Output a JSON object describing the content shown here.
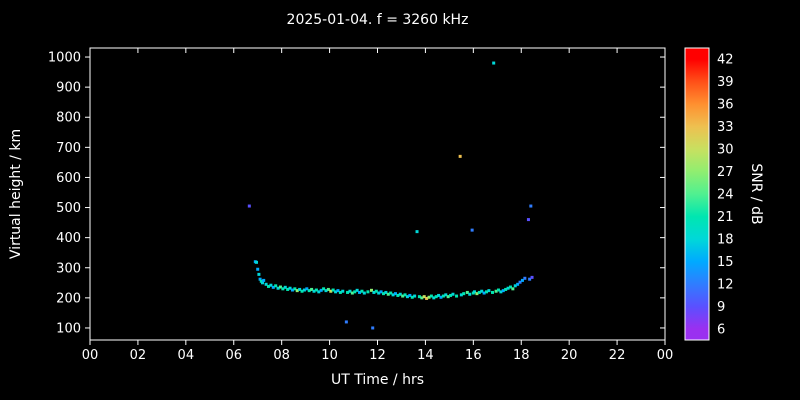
{
  "title": "2025-01-04. f = 3260 kHz",
  "background": "#000000",
  "chart_data": {
    "type": "scatter",
    "title": "2025-01-04. f = 3260 kHz",
    "xlabel": "UT Time / hrs",
    "ylabel": "Virtual height / km",
    "colorbar_label": "SNR / dB",
    "xlim": [
      0,
      24
    ],
    "ylim": [
      60,
      1030
    ],
    "grid": false,
    "legend": "colorbar-right",
    "xticks": [
      "00",
      "02",
      "04",
      "06",
      "08",
      "10",
      "12",
      "14",
      "16",
      "18",
      "20",
      "22",
      "00"
    ],
    "yticks": [
      100,
      200,
      300,
      400,
      500,
      600,
      700,
      800,
      900,
      1000
    ],
    "colorbar_ticks": [
      6,
      9,
      12,
      15,
      18,
      21,
      24,
      27,
      30,
      33,
      36,
      39,
      42
    ],
    "colorbar_range": [
      4.5,
      43.5
    ],
    "color_scale": [
      {
        "value": 6,
        "color": "#9a30f0"
      },
      {
        "value": 9,
        "color": "#5a50ff"
      },
      {
        "value": 12,
        "color": "#2f7dff"
      },
      {
        "value": 15,
        "color": "#00aaff"
      },
      {
        "value": 18,
        "color": "#00d8d8"
      },
      {
        "value": 21,
        "color": "#00e6b0"
      },
      {
        "value": 24,
        "color": "#50f090"
      },
      {
        "value": 27,
        "color": "#90ee70"
      },
      {
        "value": 30,
        "color": "#c8e060"
      },
      {
        "value": 33,
        "color": "#eec050"
      },
      {
        "value": 36,
        "color": "#ff9030"
      },
      {
        "value": 39,
        "color": "#ff5018"
      },
      {
        "value": 42,
        "color": "#ff0000"
      }
    ],
    "points": [
      [
        6.65,
        505,
        9
      ],
      [
        6.9,
        320,
        15
      ],
      [
        6.95,
        318,
        18
      ],
      [
        7.0,
        295,
        15
      ],
      [
        7.05,
        278,
        18
      ],
      [
        7.1,
        262,
        15
      ],
      [
        7.15,
        255,
        21
      ],
      [
        7.2,
        250,
        18
      ],
      [
        7.25,
        258,
        15
      ],
      [
        7.35,
        245,
        18
      ],
      [
        7.45,
        238,
        21
      ],
      [
        7.55,
        242,
        18
      ],
      [
        7.65,
        235,
        15
      ],
      [
        7.75,
        240,
        21
      ],
      [
        7.85,
        232,
        18
      ],
      [
        7.95,
        236,
        24
      ],
      [
        8.05,
        230,
        21
      ],
      [
        8.15,
        235,
        18
      ],
      [
        8.25,
        228,
        21
      ],
      [
        8.35,
        232,
        18
      ],
      [
        8.45,
        226,
        15
      ],
      [
        8.55,
        230,
        21
      ],
      [
        8.65,
        224,
        27
      ],
      [
        8.75,
        228,
        18
      ],
      [
        8.85,
        222,
        21
      ],
      [
        8.95,
        226,
        18
      ],
      [
        9.05,
        230,
        15
      ],
      [
        9.15,
        224,
        21
      ],
      [
        9.25,
        228,
        24
      ],
      [
        9.35,
        222,
        18
      ],
      [
        9.45,
        226,
        21
      ],
      [
        9.55,
        220,
        18
      ],
      [
        9.65,
        225,
        15
      ],
      [
        9.75,
        230,
        21
      ],
      [
        9.85,
        224,
        18
      ],
      [
        9.95,
        228,
        24
      ],
      [
        10.05,
        222,
        30
      ],
      [
        10.15,
        226,
        21
      ],
      [
        10.25,
        220,
        18
      ],
      [
        10.35,
        224,
        15
      ],
      [
        10.45,
        218,
        21
      ],
      [
        10.55,
        222,
        18
      ],
      [
        10.7,
        120,
        12
      ],
      [
        10.75,
        218,
        21
      ],
      [
        10.85,
        222,
        18
      ],
      [
        10.95,
        216,
        24
      ],
      [
        11.05,
        220,
        21
      ],
      [
        11.15,
        225,
        18
      ],
      [
        11.25,
        218,
        15
      ],
      [
        11.35,
        222,
        21
      ],
      [
        11.45,
        216,
        18
      ],
      [
        11.6,
        220,
        21
      ],
      [
        11.75,
        225,
        27
      ],
      [
        11.8,
        100,
        12
      ],
      [
        11.85,
        218,
        18
      ],
      [
        11.95,
        222,
        21
      ],
      [
        12.05,
        216,
        18
      ],
      [
        12.15,
        220,
        15
      ],
      [
        12.25,
        214,
        21
      ],
      [
        12.35,
        218,
        18
      ],
      [
        12.45,
        212,
        24
      ],
      [
        12.55,
        216,
        21
      ],
      [
        12.65,
        210,
        18
      ],
      [
        12.75,
        214,
        15
      ],
      [
        12.85,
        208,
        21
      ],
      [
        12.95,
        212,
        18
      ],
      [
        13.05,
        206,
        24
      ],
      [
        13.15,
        210,
        21
      ],
      [
        13.25,
        204,
        18
      ],
      [
        13.35,
        208,
        15
      ],
      [
        13.45,
        202,
        21
      ],
      [
        13.55,
        206,
        18
      ],
      [
        13.65,
        420,
        18
      ],
      [
        13.75,
        204,
        21
      ],
      [
        13.85,
        200,
        24
      ],
      [
        13.95,
        204,
        30
      ],
      [
        14.05,
        198,
        33
      ],
      [
        14.15,
        202,
        27
      ],
      [
        14.25,
        206,
        21
      ],
      [
        14.35,
        200,
        18
      ],
      [
        14.45,
        204,
        21
      ],
      [
        14.55,
        208,
        18
      ],
      [
        14.65,
        202,
        15
      ],
      [
        14.75,
        206,
        21
      ],
      [
        14.85,
        210,
        18
      ],
      [
        14.95,
        204,
        24
      ],
      [
        15.05,
        208,
        21
      ],
      [
        15.15,
        212,
        18
      ],
      [
        15.3,
        206,
        21
      ],
      [
        15.45,
        670,
        33
      ],
      [
        15.5,
        210,
        18
      ],
      [
        15.6,
        214,
        21
      ],
      [
        15.75,
        218,
        24
      ],
      [
        15.85,
        212,
        18
      ],
      [
        15.95,
        425,
        12
      ],
      [
        16.0,
        216,
        21
      ],
      [
        16.05,
        220,
        18
      ],
      [
        16.15,
        214,
        27
      ],
      [
        16.25,
        218,
        21
      ],
      [
        16.35,
        222,
        18
      ],
      [
        16.45,
        216,
        15
      ],
      [
        16.55,
        220,
        21
      ],
      [
        16.65,
        224,
        18
      ],
      [
        16.8,
        218,
        21
      ],
      [
        16.85,
        980,
        18
      ],
      [
        16.95,
        222,
        24
      ],
      [
        17.05,
        226,
        21
      ],
      [
        17.15,
        220,
        18
      ],
      [
        17.25,
        224,
        15
      ],
      [
        17.35,
        228,
        21
      ],
      [
        17.45,
        232,
        18
      ],
      [
        17.55,
        236,
        21
      ],
      [
        17.65,
        230,
        24
      ],
      [
        17.75,
        240,
        18
      ],
      [
        17.85,
        245,
        15
      ],
      [
        17.95,
        252,
        12
      ],
      [
        18.05,
        258,
        15
      ],
      [
        18.15,
        265,
        12
      ],
      [
        18.3,
        460,
        9
      ],
      [
        18.35,
        262,
        12
      ],
      [
        18.4,
        505,
        12
      ],
      [
        18.45,
        268,
        9
      ]
    ]
  }
}
